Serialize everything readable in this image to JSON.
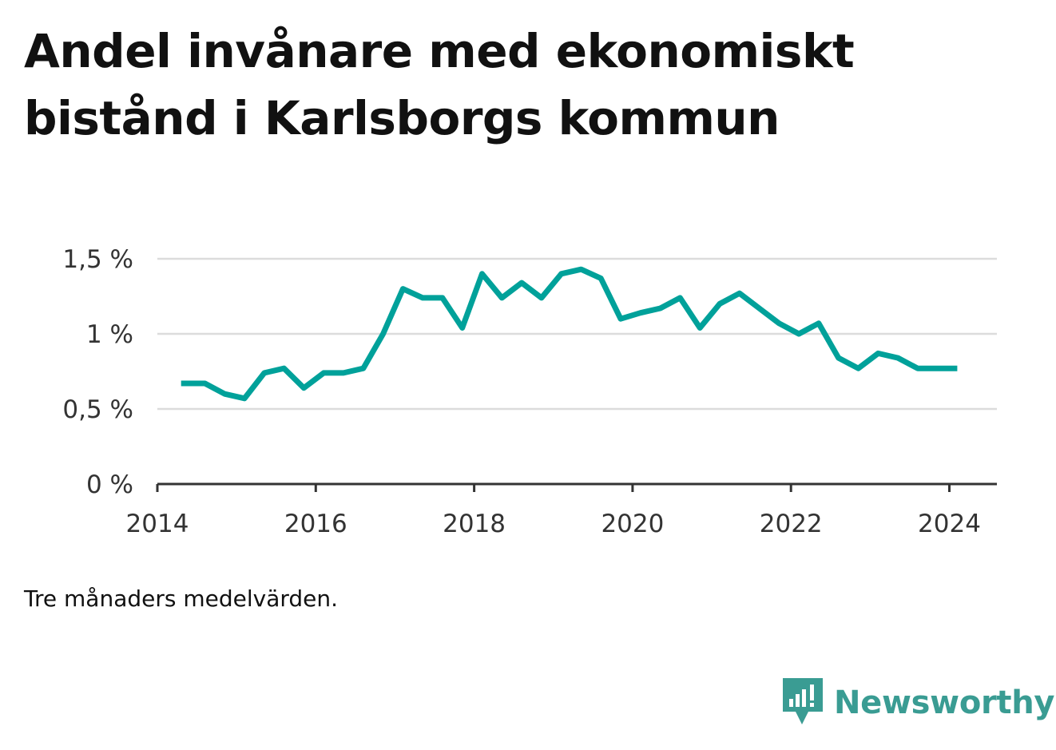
{
  "title": "Andel invånare med ekonomiskt bistånd i Karlsborgs kommun",
  "note": "Tre månaders medelvärden.",
  "brand": {
    "name": "Newsworthy",
    "icon": "newsworthy-logo-icon",
    "color": "#3a9c93"
  },
  "chart_data": {
    "type": "line",
    "title": "Andel invånare med ekonomiskt bistånd i Karlsborgs kommun",
    "xlabel": "",
    "ylabel": "",
    "color": "#00a19a",
    "grid": true,
    "legend": "none",
    "xlim": [
      2014.0,
      2024.6
    ],
    "ylim": [
      0,
      1.5
    ],
    "xticks": [
      2014,
      2016,
      2018,
      2020,
      2022,
      2024
    ],
    "xtick_labels": [
      "2014",
      "2016",
      "2018",
      "2020",
      "2022",
      "2024"
    ],
    "yticks": [
      0,
      0.5,
      1,
      1.5
    ],
    "ytick_labels": [
      "0 %",
      "0,5 %",
      "1 %",
      "1,5 %"
    ],
    "series": [
      {
        "name": "",
        "x": [
          2014.3,
          2014.6,
          2014.85,
          2015.1,
          2015.35,
          2015.6,
          2015.85,
          2016.1,
          2016.35,
          2016.6,
          2016.85,
          2017.1,
          2017.35,
          2017.6,
          2017.85,
          2018.1,
          2018.35,
          2018.6,
          2018.85,
          2019.1,
          2019.35,
          2019.6,
          2019.85,
          2020.1,
          2020.35,
          2020.6,
          2020.85,
          2021.1,
          2021.35,
          2021.6,
          2021.85,
          2022.1,
          2022.35,
          2022.6,
          2022.85,
          2023.1,
          2023.35,
          2023.6,
          2023.85,
          2024.1
        ],
        "values": [
          0.67,
          0.67,
          0.6,
          0.57,
          0.74,
          0.77,
          0.64,
          0.74,
          0.74,
          0.77,
          1.0,
          1.3,
          1.24,
          1.24,
          1.04,
          1.4,
          1.24,
          1.34,
          1.24,
          1.4,
          1.43,
          1.37,
          1.1,
          1.14,
          1.17,
          1.24,
          1.04,
          1.2,
          1.27,
          1.17,
          1.07,
          1.0,
          1.07,
          0.84,
          0.77,
          0.87,
          0.84,
          0.77,
          0.77,
          0.77
        ]
      }
    ]
  }
}
